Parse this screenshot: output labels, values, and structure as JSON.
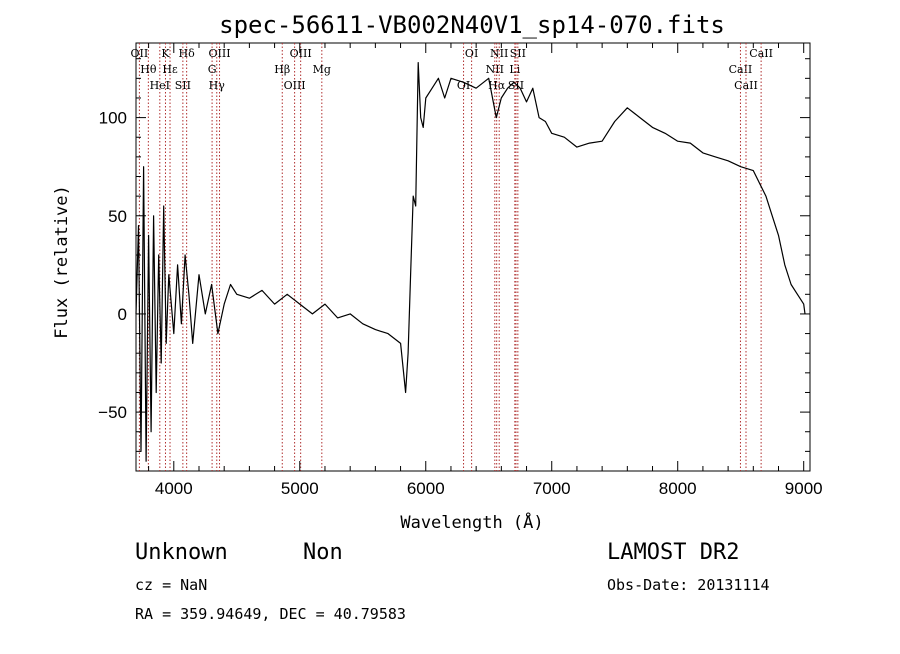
{
  "chart_data": {
    "type": "line",
    "title": "spec-56611-VB002N40V1_sp14-070.fits",
    "xlabel": "Wavelength (Å)",
    "ylabel": "Flux (relative)",
    "xlim": [
      3700,
      9050
    ],
    "ylim": [
      -80,
      138
    ],
    "xticks": [
      4000,
      5000,
      6000,
      7000,
      8000,
      9000
    ],
    "yticks": [
      -50,
      0,
      50,
      100
    ],
    "xtick_labels": [
      "4000",
      "5000",
      "6000",
      "7000",
      "8000",
      "9000"
    ],
    "ytick_labels": [
      "−50",
      "0",
      "50",
      "100"
    ],
    "series": [
      {
        "color": "#000000",
        "x": [
          3700,
          3720,
          3740,
          3760,
          3780,
          3800,
          3820,
          3840,
          3860,
          3880,
          3900,
          3920,
          3940,
          3960,
          3980,
          4000,
          4030,
          4060,
          4090,
          4120,
          4150,
          4200,
          4250,
          4300,
          4350,
          4400,
          4450,
          4500,
          4600,
          4700,
          4800,
          4900,
          5000,
          5100,
          5200,
          5300,
          5400,
          5500,
          5600,
          5700,
          5800,
          5840,
          5860,
          5880,
          5900,
          5920,
          5940,
          5960,
          5980,
          6000,
          6050,
          6100,
          6150,
          6200,
          6300,
          6400,
          6500,
          6560,
          6600,
          6650,
          6700,
          6750,
          6800,
          6850,
          6900,
          6950,
          7000,
          7100,
          7200,
          7300,
          7400,
          7500,
          7600,
          7700,
          7800,
          7900,
          8000,
          8100,
          8200,
          8300,
          8400,
          8500,
          8600,
          8700,
          8750,
          8800,
          8850,
          8900,
          8950,
          9000,
          9010
        ],
        "y": [
          0,
          45,
          -70,
          75,
          -75,
          40,
          -60,
          50,
          -40,
          30,
          -25,
          55,
          -15,
          20,
          5,
          -10,
          25,
          -5,
          30,
          10,
          -15,
          20,
          0,
          15,
          -10,
          5,
          15,
          10,
          8,
          12,
          5,
          10,
          5,
          0,
          5,
          -2,
          0,
          -5,
          -8,
          -10,
          -15,
          -40,
          -20,
          20,
          60,
          55,
          128,
          100,
          95,
          110,
          115,
          120,
          110,
          120,
          118,
          115,
          120,
          100,
          110,
          115,
          118,
          115,
          108,
          115,
          100,
          98,
          92,
          90,
          85,
          87,
          88,
          98,
          105,
          100,
          95,
          92,
          88,
          87,
          82,
          80,
          78,
          75,
          73,
          60,
          50,
          40,
          25,
          15,
          10,
          5,
          0
        ]
      }
    ],
    "emission_lines": [
      {
        "wavelength": 3727,
        "labels": [
          "OII"
        ]
      },
      {
        "wavelength": 3798,
        "labels": [
          "Hθ"
        ]
      },
      {
        "wavelength": 3889,
        "labels": [
          "HeI"
        ]
      },
      {
        "wavelength": 3934,
        "labels": [
          "K"
        ]
      },
      {
        "wavelength": 3970,
        "labels": [
          "Hε"
        ]
      },
      {
        "wavelength": 4072,
        "labels": [
          "SII"
        ]
      },
      {
        "wavelength": 4102,
        "labels": [
          "Hδ"
        ]
      },
      {
        "wavelength": 4304,
        "labels": [
          "G"
        ]
      },
      {
        "wavelength": 4341,
        "labels": [
          "Hγ"
        ]
      },
      {
        "wavelength": 4363,
        "labels": [
          "OIII"
        ]
      },
      {
        "wavelength": 4861,
        "labels": [
          "Hβ"
        ]
      },
      {
        "wavelength": 4959,
        "labels": [
          "OIII"
        ]
      },
      {
        "wavelength": 5007,
        "labels": [
          "OIII"
        ]
      },
      {
        "wavelength": 5175,
        "labels": [
          "Mg"
        ]
      },
      {
        "wavelength": 6300,
        "labels": [
          "OI"
        ]
      },
      {
        "wavelength": 6364,
        "labels": [
          "OI"
        ]
      },
      {
        "wavelength": 6548,
        "labels": [
          "NII"
        ]
      },
      {
        "wavelength": 6563,
        "labels": [
          "Hα"
        ]
      },
      {
        "wavelength": 6583,
        "labels": [
          "NII"
        ]
      },
      {
        "wavelength": 6707,
        "labels": [
          "Li"
        ]
      },
      {
        "wavelength": 6716,
        "labels": [
          "SII"
        ]
      },
      {
        "wavelength": 6731,
        "labels": [
          "SII"
        ]
      },
      {
        "wavelength": 8498,
        "labels": [
          "CaII"
        ]
      },
      {
        "wavelength": 8542,
        "labels": [
          "CaII"
        ]
      },
      {
        "wavelength": 8662,
        "labels": [
          "CaII"
        ]
      }
    ]
  },
  "info": {
    "class": "Unknown",
    "subclass": "Non",
    "survey": "LAMOST DR2",
    "cz": "cz = NaN",
    "obs_date": "Obs-Date: 20131114",
    "coords": "RA = 359.94649, DEC =  40.79583"
  }
}
